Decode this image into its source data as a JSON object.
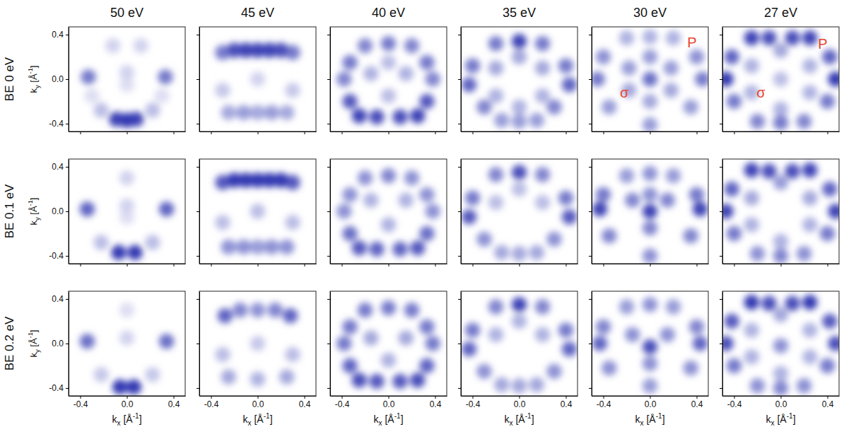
{
  "chart_data": {
    "type": "heatmap",
    "columns": [
      "50 eV",
      "45 eV",
      "40 eV",
      "35 eV",
      "30 eV",
      "27 eV"
    ],
    "rows": [
      "BE 0 eV",
      "BE 0.1 eV",
      "BE 0.2 eV"
    ],
    "xlabel": "kx [Å-1]",
    "ylabel": "ky [Å-1]",
    "xlim": [
      -0.5,
      0.5
    ],
    "ylim": [
      -0.47,
      0.47
    ],
    "xticks": [
      -0.4,
      {
        "value": 0,
        "label": "0.0"
      },
      0.4
    ],
    "yticks": [
      -0.4,
      {
        "value": 0,
        "label": "0.0"
      },
      0.4
    ],
    "zlim": [
      0,
      1
    ],
    "color": "#1b22a8",
    "panels": [
      [
        {
          "kx": [
            -0.33,
            0.33,
            -0.09,
            0,
            0.08,
            0,
            -0.12,
            0.12,
            -0.22,
            0.22,
            0,
            -0.3,
            0.3
          ],
          "ky": [
            0.02,
            0.02,
            -0.36,
            -0.37,
            -0.36,
            0.06,
            0.3,
            0.3,
            -0.28,
            -0.28,
            -0.05,
            -0.15,
            -0.15
          ],
          "intensity": [
            0.6,
            0.6,
            0.85,
            0.9,
            0.85,
            0.2,
            0.2,
            0.2,
            0.3,
            0.3,
            0.15,
            0.15,
            0.15
          ]
        },
        {
          "kx": [
            -0.3,
            -0.2,
            -0.1,
            0,
            0.1,
            0.2,
            0.3,
            -0.25,
            -0.12,
            0,
            0.12,
            0.25,
            0,
            -0.3,
            0.3
          ],
          "ky": [
            0.24,
            0.26,
            0.26,
            0.26,
            0.26,
            0.26,
            0.24,
            -0.3,
            -0.3,
            -0.3,
            -0.3,
            -0.3,
            0,
            -0.1,
            -0.1
          ],
          "intensity": [
            0.6,
            0.8,
            0.85,
            0.85,
            0.85,
            0.8,
            0.6,
            0.4,
            0.45,
            0.4,
            0.45,
            0.4,
            0.2,
            0.25,
            0.25
          ]
        },
        {
          "kx": [
            -0.2,
            0,
            0.2,
            -0.33,
            0.33,
            -0.38,
            0.38,
            -0.33,
            0.33,
            -0.25,
            -0.1,
            0.1,
            0.25,
            -0.15,
            0.15,
            0,
            0
          ],
          "ky": [
            0.3,
            0.32,
            0.3,
            0.15,
            0.15,
            0,
            0,
            -0.2,
            -0.2,
            -0.33,
            -0.34,
            -0.34,
            -0.33,
            0.05,
            0.05,
            -0.15,
            0.15
          ],
          "intensity": [
            0.55,
            0.6,
            0.55,
            0.6,
            0.6,
            0.55,
            0.55,
            0.75,
            0.75,
            0.85,
            0.8,
            0.8,
            0.85,
            0.35,
            0.35,
            0.3,
            0.3
          ]
        },
        {
          "kx": [
            0,
            -0.2,
            0.2,
            -0.4,
            0.4,
            -0.43,
            0.43,
            -0.3,
            0.3,
            -0.15,
            0,
            0.15,
            -0.2,
            0.2,
            0,
            -0.2,
            0.2,
            0
          ],
          "ky": [
            0.34,
            0.32,
            0.32,
            0.12,
            0.12,
            -0.05,
            -0.05,
            -0.25,
            -0.25,
            -0.37,
            -0.38,
            -0.37,
            0.1,
            0.1,
            0.2,
            -0.15,
            -0.15,
            -0.25
          ],
          "intensity": [
            0.85,
            0.6,
            0.6,
            0.6,
            0.6,
            0.7,
            0.7,
            0.55,
            0.55,
            0.45,
            0.45,
            0.45,
            0.4,
            0.4,
            0.4,
            0.35,
            0.35,
            0.35
          ]
        },
        {
          "kx": [
            -0.2,
            0,
            0.2,
            -0.4,
            0.4,
            -0.45,
            0.45,
            -0.35,
            0.35,
            0,
            0,
            -0.18,
            0.18,
            -0.18,
            0.18,
            0,
            0
          ],
          "ky": [
            0.37,
            0.38,
            0.37,
            0.2,
            0.2,
            0,
            0,
            -0.25,
            -0.25,
            -0.41,
            0.2,
            0.1,
            0.1,
            -0.1,
            -0.1,
            -0.2,
            0
          ],
          "intensity": [
            0.35,
            0.35,
            0.35,
            0.5,
            0.5,
            0.6,
            0.6,
            0.45,
            0.45,
            0.45,
            0.45,
            0.45,
            0.45,
            0.4,
            0.4,
            0.4,
            0.65
          ],
          "annotations": [
            {
              "text": "P",
              "kx": 0.36,
              "ky": 0.33,
              "color": "#e8452c"
            },
            {
              "text": "σ",
              "kx": -0.22,
              "ky": -0.12,
              "color": "#e8452c"
            }
          ]
        },
        {
          "kx": [
            -0.25,
            -0.1,
            0.1,
            0.25,
            -0.42,
            0.42,
            -0.47,
            0.47,
            -0.4,
            0.4,
            -0.2,
            0,
            0.2,
            0,
            -0.25,
            0.25,
            -0.25,
            0.25,
            0,
            0
          ],
          "ky": [
            0.37,
            0.37,
            0.37,
            0.37,
            0.2,
            0.2,
            0,
            0,
            -0.2,
            -0.2,
            -0.38,
            -0.39,
            -0.38,
            0.26,
            0.12,
            0.12,
            -0.12,
            -0.12,
            -0.27,
            0
          ],
          "intensity": [
            0.85,
            0.8,
            0.8,
            0.85,
            0.7,
            0.7,
            0.9,
            0.9,
            0.6,
            0.6,
            0.55,
            0.6,
            0.55,
            0.4,
            0.35,
            0.35,
            0.35,
            0.35,
            0.35,
            0.3
          ],
          "annotations": [
            {
              "text": "P",
              "kx": 0.36,
              "ky": 0.32,
              "color": "#e8452c"
            },
            {
              "text": "σ",
              "kx": -0.17,
              "ky": -0.12,
              "color": "#e8452c"
            }
          ]
        }
      ],
      [
        {
          "kx": [
            -0.34,
            0.34,
            -0.07,
            0.07,
            0,
            0,
            0,
            -0.22,
            0.22
          ],
          "ky": [
            0.02,
            0.02,
            -0.37,
            -0.37,
            0.05,
            0.3,
            -0.05,
            -0.28,
            -0.28
          ],
          "intensity": [
            0.7,
            0.7,
            0.9,
            0.9,
            0.2,
            0.2,
            0.15,
            0.3,
            0.3
          ]
        },
        {
          "kx": [
            -0.3,
            -0.2,
            -0.1,
            0,
            0.1,
            0.2,
            0.3,
            -0.25,
            -0.12,
            0,
            0.12,
            0.25,
            0,
            -0.3,
            0.3
          ],
          "ky": [
            0.26,
            0.28,
            0.28,
            0.28,
            0.28,
            0.28,
            0.26,
            -0.32,
            -0.32,
            -0.32,
            -0.32,
            -0.32,
            0,
            -0.1,
            -0.1
          ],
          "intensity": [
            0.75,
            0.9,
            0.9,
            0.9,
            0.9,
            0.9,
            0.75,
            0.5,
            0.5,
            0.45,
            0.5,
            0.5,
            0.3,
            0.3,
            0.3
          ]
        },
        {
          "kx": [
            -0.2,
            0,
            0.2,
            -0.33,
            0.33,
            -0.38,
            0.38,
            -0.33,
            0.33,
            -0.25,
            -0.1,
            0.1,
            0.25,
            -0.15,
            0.15,
            0
          ],
          "ky": [
            0.3,
            0.32,
            0.3,
            0.15,
            0.15,
            0,
            0,
            -0.2,
            -0.2,
            -0.33,
            -0.34,
            -0.34,
            -0.33,
            0.1,
            0.1,
            -0.12
          ],
          "intensity": [
            0.5,
            0.55,
            0.5,
            0.5,
            0.5,
            0.5,
            0.5,
            0.65,
            0.65,
            0.75,
            0.7,
            0.7,
            0.75,
            0.35,
            0.35,
            0.35
          ]
        },
        {
          "kx": [
            0,
            -0.2,
            0.2,
            -0.4,
            0.4,
            -0.43,
            0.43,
            -0.3,
            0.3,
            -0.15,
            0,
            0.15,
            -0.2,
            0.2,
            0
          ],
          "ky": [
            0.35,
            0.33,
            0.33,
            0.12,
            0.12,
            -0.05,
            -0.05,
            -0.25,
            -0.25,
            -0.37,
            -0.38,
            -0.37,
            0.08,
            0.08,
            0.2
          ],
          "intensity": [
            0.8,
            0.55,
            0.55,
            0.6,
            0.6,
            0.75,
            0.75,
            0.5,
            0.5,
            0.4,
            0.4,
            0.4,
            0.3,
            0.3,
            0.3
          ]
        },
        {
          "kx": [
            -0.2,
            0,
            0.2,
            -0.4,
            0.4,
            -0.43,
            0.43,
            -0.35,
            0.35,
            0,
            0,
            -0.15,
            0.15,
            0,
            0
          ],
          "ky": [
            0.32,
            0.34,
            0.32,
            0.15,
            0.15,
            0.02,
            0.02,
            -0.22,
            -0.22,
            -0.4,
            0,
            0.1,
            0.1,
            -0.15,
            0.15
          ],
          "intensity": [
            0.45,
            0.5,
            0.45,
            0.6,
            0.6,
            0.85,
            0.85,
            0.55,
            0.55,
            0.5,
            0.85,
            0.55,
            0.55,
            0.55,
            0.5
          ]
        },
        {
          "kx": [
            -0.25,
            -0.1,
            0.1,
            0.25,
            -0.42,
            0.42,
            -0.47,
            0.47,
            -0.4,
            0.4,
            -0.2,
            0,
            0.2,
            0,
            -0.25,
            0.25,
            -0.25,
            0.25,
            0
          ],
          "ky": [
            0.37,
            0.36,
            0.36,
            0.37,
            0.2,
            0.2,
            0,
            0,
            -0.2,
            -0.2,
            -0.38,
            -0.4,
            -0.38,
            0.26,
            0.12,
            0.12,
            -0.12,
            -0.12,
            -0.27
          ],
          "intensity": [
            0.85,
            0.8,
            0.8,
            0.85,
            0.7,
            0.7,
            0.85,
            0.85,
            0.6,
            0.6,
            0.5,
            0.55,
            0.5,
            0.45,
            0.4,
            0.4,
            0.35,
            0.35,
            0.35
          ]
        }
      ],
      [
        {
          "kx": [
            -0.34,
            0.34,
            -0.06,
            0.06,
            0,
            0,
            -0.22,
            0.22
          ],
          "ky": [
            0.02,
            0.02,
            -0.39,
            -0.39,
            0.05,
            0.3,
            -0.28,
            -0.28
          ],
          "intensity": [
            0.65,
            0.65,
            0.9,
            0.9,
            0.2,
            0.15,
            0.25,
            0.25
          ]
        },
        {
          "kx": [
            -0.28,
            -0.15,
            0,
            0.15,
            0.28,
            -0.25,
            0,
            0.25,
            0,
            -0.3,
            0.3
          ],
          "ky": [
            0.25,
            0.3,
            0.3,
            0.3,
            0.25,
            -0.3,
            -0.32,
            -0.3,
            0,
            -0.1,
            -0.1
          ],
          "intensity": [
            0.7,
            0.55,
            0.5,
            0.55,
            0.7,
            0.4,
            0.35,
            0.4,
            0.25,
            0.3,
            0.3
          ]
        },
        {
          "kx": [
            -0.2,
            0,
            0.2,
            -0.33,
            0.33,
            -0.38,
            0.38,
            -0.33,
            0.33,
            -0.25,
            -0.1,
            0.1,
            0.25,
            -0.15,
            0.15,
            0
          ],
          "ky": [
            0.3,
            0.32,
            0.3,
            0.15,
            0.15,
            0,
            0,
            -0.2,
            -0.2,
            -0.33,
            -0.34,
            -0.34,
            -0.33,
            0.05,
            0.05,
            -0.15
          ],
          "intensity": [
            0.6,
            0.6,
            0.6,
            0.6,
            0.6,
            0.6,
            0.6,
            0.7,
            0.7,
            0.8,
            0.75,
            0.75,
            0.8,
            0.4,
            0.4,
            0.35
          ]
        },
        {
          "kx": [
            0,
            -0.2,
            0.2,
            -0.4,
            0.4,
            -0.43,
            0.43,
            -0.3,
            0.3,
            -0.15,
            0,
            0.15,
            -0.2,
            0.2,
            0
          ],
          "ky": [
            0.35,
            0.33,
            0.33,
            0.12,
            0.12,
            -0.05,
            -0.05,
            -0.25,
            -0.25,
            -0.37,
            -0.38,
            -0.37,
            0.08,
            0.08,
            0.2
          ],
          "intensity": [
            0.85,
            0.55,
            0.55,
            0.6,
            0.6,
            0.7,
            0.7,
            0.5,
            0.5,
            0.4,
            0.4,
            0.4,
            0.35,
            0.35,
            0.35
          ]
        },
        {
          "kx": [
            -0.2,
            0,
            0.2,
            -0.4,
            0.4,
            -0.43,
            0.43,
            -0.35,
            0.35,
            0,
            0,
            -0.15,
            0.15,
            0
          ],
          "ky": [
            0.33,
            0.35,
            0.33,
            0.15,
            0.15,
            0,
            0,
            -0.22,
            -0.22,
            -0.38,
            -0.03,
            0.08,
            0.08,
            -0.18
          ],
          "intensity": [
            0.45,
            0.5,
            0.45,
            0.55,
            0.55,
            0.7,
            0.7,
            0.5,
            0.5,
            0.45,
            0.8,
            0.5,
            0.5,
            0.5
          ]
        },
        {
          "kx": [
            -0.25,
            -0.1,
            0.1,
            0.25,
            -0.42,
            0.42,
            -0.47,
            0.47,
            -0.4,
            0.4,
            -0.2,
            0,
            0.2,
            0,
            -0.25,
            0.25,
            -0.25,
            0.25,
            0,
            0
          ],
          "ky": [
            0.37,
            0.36,
            0.36,
            0.37,
            0.2,
            0.2,
            0,
            0,
            -0.2,
            -0.2,
            -0.38,
            -0.4,
            -0.38,
            0.26,
            0.12,
            0.12,
            -0.12,
            -0.12,
            -0.27,
            -0.02
          ],
          "intensity": [
            0.9,
            0.8,
            0.8,
            0.9,
            0.75,
            0.75,
            0.8,
            0.8,
            0.6,
            0.6,
            0.5,
            0.55,
            0.5,
            0.4,
            0.35,
            0.35,
            0.35,
            0.35,
            0.35,
            0.5
          ]
        }
      ]
    ]
  }
}
